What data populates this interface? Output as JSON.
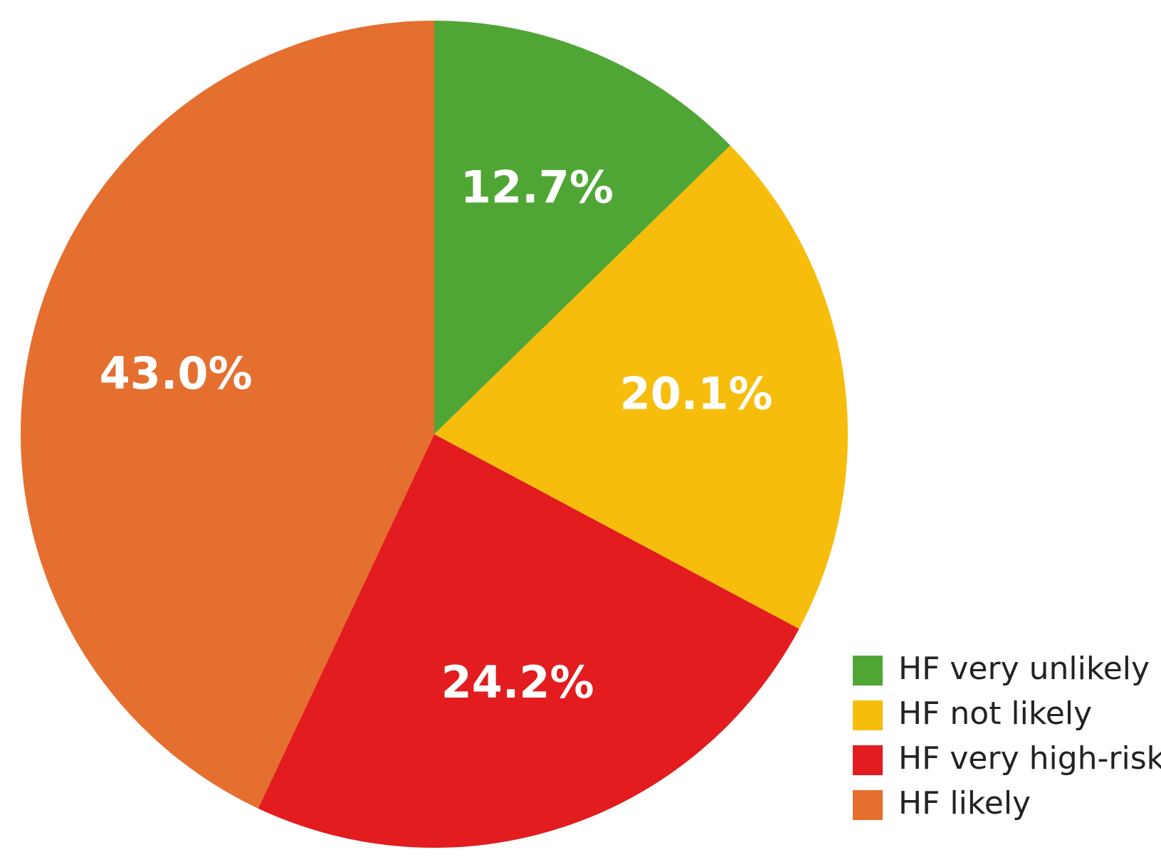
{
  "chart_data": {
    "type": "pie",
    "categories": [
      "HF very unlikely",
      "HF not likely",
      "HF very high-risk",
      "HF likely"
    ],
    "values": [
      12.7,
      20.1,
      24.2,
      43.0
    ],
    "value_labels": [
      "12.7%",
      "20.1%",
      "24.2%",
      "43.0%"
    ],
    "colors": [
      "#50a635",
      "#f6bd0c",
      "#e21c1f",
      "#e56f2f"
    ],
    "legend": "bottom-right"
  }
}
